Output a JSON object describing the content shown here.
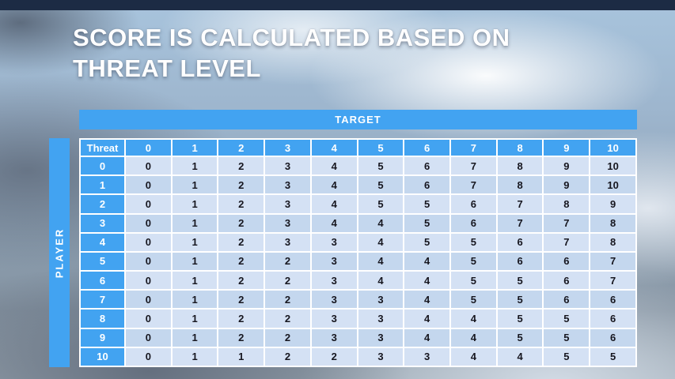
{
  "slide": {
    "title_line1": "SCORE IS CALCULATED BASED ON",
    "title_line2": "THREAT LEVEL"
  },
  "chart_data": {
    "type": "table",
    "title": "SCORE IS CALCULATED BASED ON THREAT LEVEL",
    "column_group_label": "TARGET",
    "row_group_label": "PLAYER",
    "corner_header": "Threat",
    "column_headers": [
      "0",
      "1",
      "2",
      "3",
      "4",
      "5",
      "6",
      "7",
      "8",
      "9",
      "10"
    ],
    "rows": [
      {
        "threat": "0",
        "values": [
          "0",
          "1",
          "2",
          "3",
          "4",
          "5",
          "6",
          "7",
          "8",
          "9",
          "10"
        ]
      },
      {
        "threat": "1",
        "values": [
          "0",
          "1",
          "2",
          "3",
          "4",
          "5",
          "6",
          "7",
          "8",
          "9",
          "10"
        ]
      },
      {
        "threat": "2",
        "values": [
          "0",
          "1",
          "2",
          "3",
          "4",
          "5",
          "5",
          "6",
          "7",
          "8",
          "9"
        ]
      },
      {
        "threat": "3",
        "values": [
          "0",
          "1",
          "2",
          "3",
          "4",
          "4",
          "5",
          "6",
          "7",
          "7",
          "8"
        ]
      },
      {
        "threat": "4",
        "values": [
          "0",
          "1",
          "2",
          "3",
          "3",
          "4",
          "5",
          "5",
          "6",
          "7",
          "8"
        ]
      },
      {
        "threat": "5",
        "values": [
          "0",
          "1",
          "2",
          "2",
          "3",
          "4",
          "4",
          "5",
          "6",
          "6",
          "7"
        ]
      },
      {
        "threat": "6",
        "values": [
          "0",
          "1",
          "2",
          "2",
          "3",
          "4",
          "4",
          "5",
          "5",
          "6",
          "7"
        ]
      },
      {
        "threat": "7",
        "values": [
          "0",
          "1",
          "2",
          "2",
          "3",
          "3",
          "4",
          "5",
          "5",
          "6",
          "6"
        ]
      },
      {
        "threat": "8",
        "values": [
          "0",
          "1",
          "2",
          "2",
          "3",
          "3",
          "4",
          "4",
          "5",
          "5",
          "6"
        ]
      },
      {
        "threat": "9",
        "values": [
          "0",
          "1",
          "2",
          "2",
          "3",
          "3",
          "4",
          "4",
          "5",
          "5",
          "6"
        ]
      },
      {
        "threat": "10",
        "values": [
          "0",
          "1",
          "1",
          "2",
          "2",
          "3",
          "3",
          "4",
          "4",
          "5",
          "5"
        ]
      }
    ]
  },
  "colors": {
    "accent_blue": "#42A3F1",
    "top_bar_navy": "#1C2B44",
    "row_band_light": "#D4E1F4",
    "row_band_dark": "#C4D7EE",
    "cell_text": "#16161F",
    "grid_white": "#FFFFFF"
  }
}
